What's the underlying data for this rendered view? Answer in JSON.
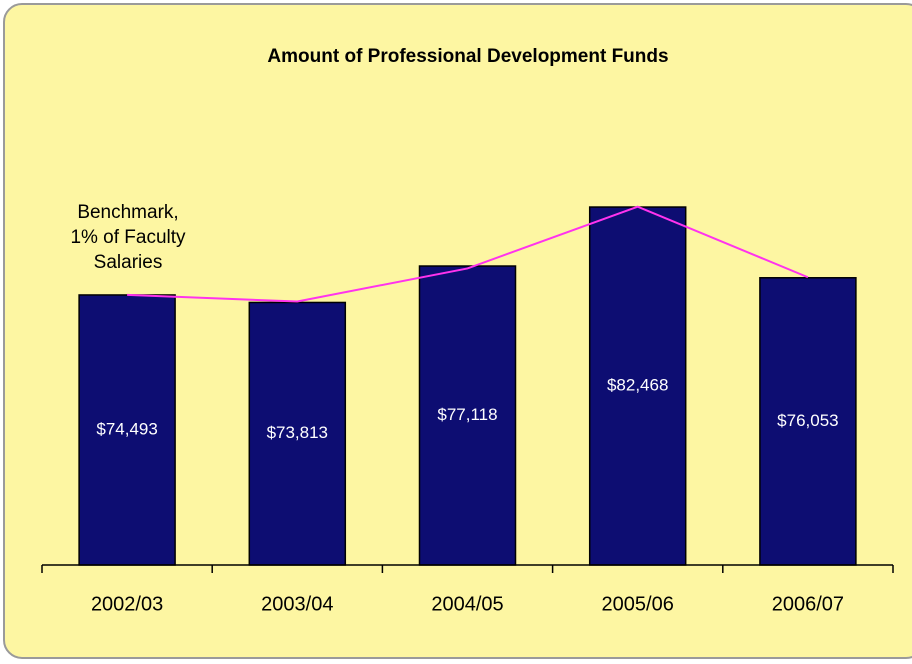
{
  "chart_data": {
    "type": "bar",
    "title": "Amount of Professional Development Funds",
    "categories": [
      "2002/03",
      "2003/04",
      "2004/05",
      "2005/06",
      "2006/07"
    ],
    "values": [
      74493,
      73813,
      77118,
      82468,
      76053
    ],
    "value_labels": [
      "$74,493",
      "$73,813",
      "$77,118",
      "$82,468",
      "$76,053"
    ],
    "color": "#0d0d72",
    "line": {
      "values": [
        74500,
        73900,
        76900,
        82500,
        76100
      ],
      "color": "#ff33ee"
    },
    "annotation": [
      "Benchmark,",
      "1% of Faculty",
      "Salaries"
    ],
    "ylim": [
      50000,
      90000
    ],
    "grid": false
  }
}
